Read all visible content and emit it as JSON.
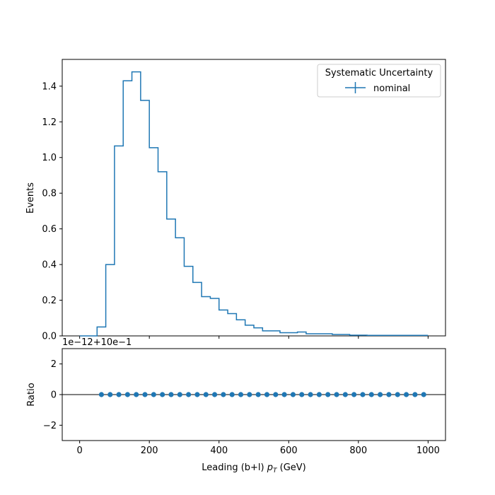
{
  "chart_data": [
    {
      "type": "step",
      "xlabel": "Leading (b+l) ",
      "xlabel_math": "p",
      "xlabel_math_sub": "T",
      "xlabel_unit": " (GeV)",
      "ylabel": "Events",
      "xlim": [
        -50,
        1050
      ],
      "ylim": [
        0,
        1.55
      ],
      "xticks": [
        0,
        200,
        400,
        600,
        800,
        1000
      ],
      "yticks": [
        0.0,
        0.2,
        0.4,
        0.6,
        0.8,
        1.0,
        1.2,
        1.4
      ],
      "ytick_labels": [
        "0.0",
        "0.2",
        "0.4",
        "0.6",
        "0.8",
        "1.0",
        "1.2",
        "1.4"
      ],
      "legend": {
        "title": "Systematic Uncertainty",
        "placement": "top-right",
        "entries": [
          "nominal"
        ]
      },
      "color": "#1f77b4",
      "series": [
        {
          "name": "nominal",
          "bin_edges": [
            0,
            25,
            50,
            75,
            100,
            125,
            150,
            175,
            200,
            225,
            250,
            275,
            300,
            325,
            350,
            375,
            400,
            425,
            450,
            475,
            500,
            525,
            550,
            575,
            600,
            625,
            650,
            675,
            700,
            725,
            750,
            775,
            800,
            825,
            850,
            875,
            900,
            925,
            950,
            975,
            1000
          ],
          "values": [
            0.0,
            0.0,
            0.05,
            0.4,
            1.065,
            1.43,
            1.48,
            1.32,
            1.055,
            0.92,
            0.655,
            0.55,
            0.39,
            0.3,
            0.22,
            0.21,
            0.145,
            0.125,
            0.09,
            0.06,
            0.045,
            0.028,
            0.028,
            0.018,
            0.018,
            0.022,
            0.012,
            0.012,
            0.012,
            0.008,
            0.008,
            0.004,
            0.004,
            0.003,
            0.003,
            0.003,
            0.003,
            0.003,
            0.003,
            0.003
          ]
        }
      ]
    },
    {
      "type": "scatter",
      "ylabel": "Ratio",
      "offset_label": "1e−12+10e−1",
      "xlim": [
        -50,
        1050
      ],
      "ylim": [
        -3,
        3
      ],
      "xticks": [
        0,
        200,
        400,
        600,
        800,
        1000
      ],
      "xtick_labels": [
        "0",
        "200",
        "400",
        "600",
        "800",
        "1000"
      ],
      "yticks": [
        -2,
        0,
        2
      ],
      "ytick_labels": [
        "−2",
        "0",
        "2"
      ],
      "reference_line": 0,
      "color": "#1f77b4",
      "series": [
        {
          "name": "ratio",
          "x": [
            62.5,
            87.5,
            112.5,
            137.5,
            162.5,
            187.5,
            212.5,
            237.5,
            262.5,
            287.5,
            312.5,
            337.5,
            362.5,
            387.5,
            412.5,
            437.5,
            462.5,
            487.5,
            512.5,
            537.5,
            562.5,
            587.5,
            612.5,
            637.5,
            662.5,
            687.5,
            712.5,
            737.5,
            762.5,
            787.5,
            812.5,
            837.5,
            862.5,
            887.5,
            912.5,
            937.5,
            962.5,
            987.5
          ],
          "y": [
            0,
            0,
            0,
            0,
            0,
            0,
            0,
            0,
            0,
            0,
            0,
            0,
            0,
            0,
            0,
            0,
            0,
            0,
            0,
            0,
            0,
            0,
            0,
            0,
            0,
            0,
            0,
            0,
            0,
            0,
            0,
            0,
            0,
            0,
            0,
            0,
            0,
            0
          ]
        }
      ]
    }
  ]
}
